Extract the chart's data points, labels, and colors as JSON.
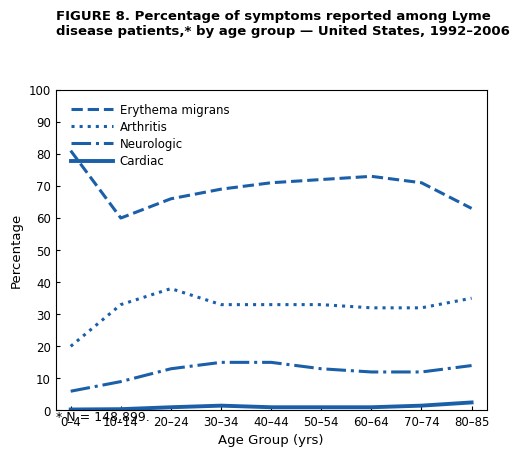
{
  "title": "FIGURE 8. Percentage of symptoms reported among Lyme\ndisease patients,* by age group — United States, 1992–2006",
  "footnote": "* N = 148,899.",
  "xlabel": "Age Group (yrs)",
  "ylabel": "Percentage",
  "age_groups": [
    "0–4",
    "10–14",
    "20–24",
    "30–34",
    "40–44",
    "50–54",
    "60–64",
    "70–74",
    "80–85"
  ],
  "erythema_migrans": [
    81,
    60,
    66,
    69,
    71,
    72,
    73,
    71,
    63
  ],
  "arthritis": [
    20,
    33,
    38,
    33,
    33,
    33,
    32,
    32,
    35
  ],
  "neurologic": [
    6,
    9,
    13,
    15,
    15,
    13,
    12,
    12,
    14
  ],
  "cardiac": [
    0.3,
    0.4,
    1.0,
    1.5,
    1.0,
    1.0,
    1.0,
    1.5,
    2.5
  ],
  "color": "#1a5fa8",
  "ylim": [
    0,
    100
  ],
  "yticks": [
    0,
    10,
    20,
    30,
    40,
    50,
    60,
    70,
    80,
    90,
    100
  ],
  "legend_labels": [
    "Erythema migrans",
    "Arthritis",
    "Neurologic",
    "Cardiac"
  ],
  "linestyles": [
    "--",
    ":",
    "-.",
    "-"
  ],
  "linewidths": [
    2.2,
    2.2,
    2.2,
    2.8
  ]
}
